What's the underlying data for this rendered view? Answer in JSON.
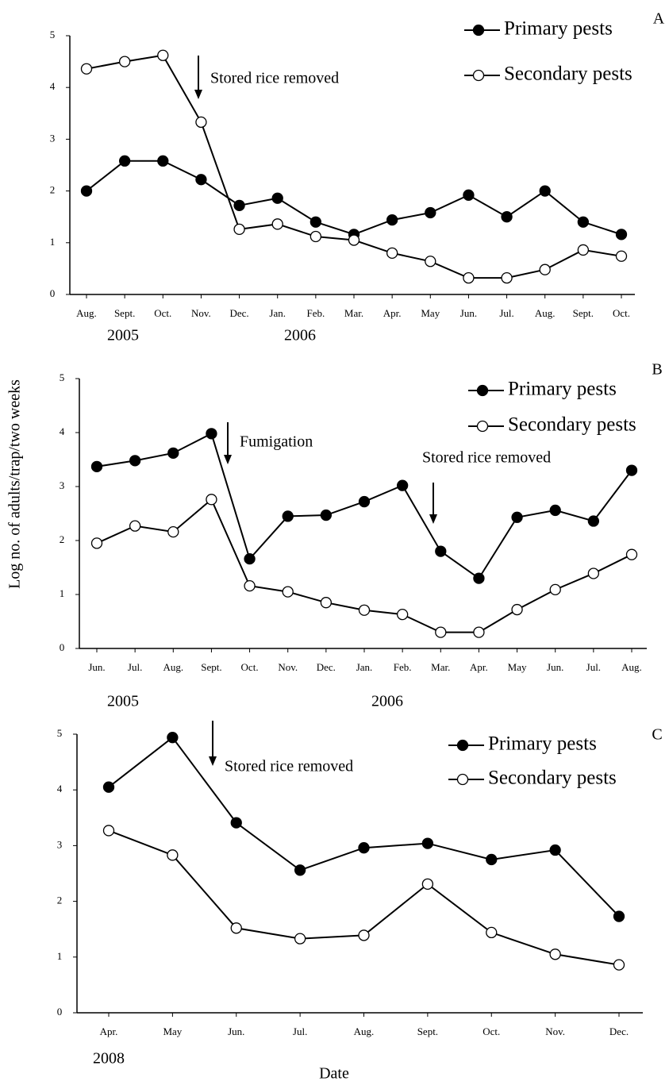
{
  "chart_data": [
    {
      "type": "line",
      "panel": "A",
      "categories": [
        "Aug.",
        "Sept.",
        "Oct.",
        "Nov.",
        "Dec.",
        "Jan.",
        "Feb.",
        "Mar.",
        "Apr.",
        "May",
        "Jun.",
        "Jul.",
        "Aug.",
        "Sept.",
        "Oct."
      ],
      "year_labels": [
        "2005",
        "2006"
      ],
      "series": [
        {
          "name": "Primary pests",
          "color": "#000000",
          "marker_fill": "#000000",
          "values": [
            2.0,
            2.58,
            2.58,
            2.22,
            1.72,
            1.86,
            1.4,
            1.16,
            1.44,
            1.58,
            1.92,
            1.5,
            2.0,
            1.4,
            1.16
          ]
        },
        {
          "name": "Secondary pests",
          "color": "#000000",
          "marker_fill": "#ffffff",
          "values": [
            4.36,
            4.5,
            4.62,
            3.33,
            1.26,
            1.36,
            1.12,
            1.05,
            0.8,
            0.64,
            0.32,
            0.32,
            0.48,
            0.86,
            0.74
          ]
        }
      ],
      "annotations": [
        "Stored rice removed"
      ],
      "ylim": [
        0,
        5
      ],
      "yticks": [
        0,
        1,
        2,
        3,
        4,
        5
      ],
      "grid": false
    },
    {
      "type": "line",
      "panel": "B",
      "ylabel": "Log no. of adults/trap/two weeks",
      "categories": [
        "Jun.",
        "Jul.",
        "Aug.",
        "Sept.",
        "Oct.",
        "Nov.",
        "Dec.",
        "Jan.",
        "Feb.",
        "Mar.",
        "Apr.",
        "May",
        "Jun.",
        "Jul.",
        "Aug."
      ],
      "year_labels": [
        "2005",
        "2006"
      ],
      "series": [
        {
          "name": "Primary pests",
          "color": "#000000",
          "marker_fill": "#000000",
          "values": [
            3.37,
            3.48,
            3.62,
            3.98,
            1.66,
            2.45,
            2.47,
            2.72,
            3.02,
            1.8,
            1.3,
            2.43,
            2.56,
            2.36,
            3.3
          ]
        },
        {
          "name": "Secondary pests",
          "color": "#000000",
          "marker_fill": "#ffffff",
          "values": [
            1.95,
            2.27,
            2.16,
            2.76,
            1.16,
            1.05,
            0.85,
            0.71,
            0.63,
            0.3,
            0.3,
            0.72,
            1.09,
            1.39,
            1.74
          ]
        }
      ],
      "annotations": [
        "Fumigation",
        "Stored rice removed"
      ],
      "ylim": [
        0,
        5
      ],
      "yticks": [
        0,
        1,
        2,
        3,
        4,
        5
      ],
      "grid": false
    },
    {
      "type": "line",
      "panel": "C",
      "xlabel": "Date",
      "categories": [
        "Apr.",
        "May",
        "Jun.",
        "Jul.",
        "Aug.",
        "Sept.",
        "Oct.",
        "Nov.",
        "Dec."
      ],
      "year_labels": [
        "2008"
      ],
      "series": [
        {
          "name": "Primary pests",
          "color": "#000000",
          "marker_fill": "#000000",
          "values": [
            4.05,
            4.94,
            3.41,
            2.56,
            2.96,
            3.04,
            2.75,
            2.92,
            1.73
          ]
        },
        {
          "name": "Secondary pests",
          "color": "#000000",
          "marker_fill": "#ffffff",
          "values": [
            3.27,
            2.83,
            1.52,
            1.33,
            1.39,
            2.31,
            1.44,
            1.05,
            0.86
          ]
        }
      ],
      "annotations": [
        "Stored rice removed"
      ],
      "ylim": [
        0,
        5
      ],
      "yticks": [
        0,
        1,
        2,
        3,
        4,
        5
      ],
      "grid": false
    }
  ]
}
